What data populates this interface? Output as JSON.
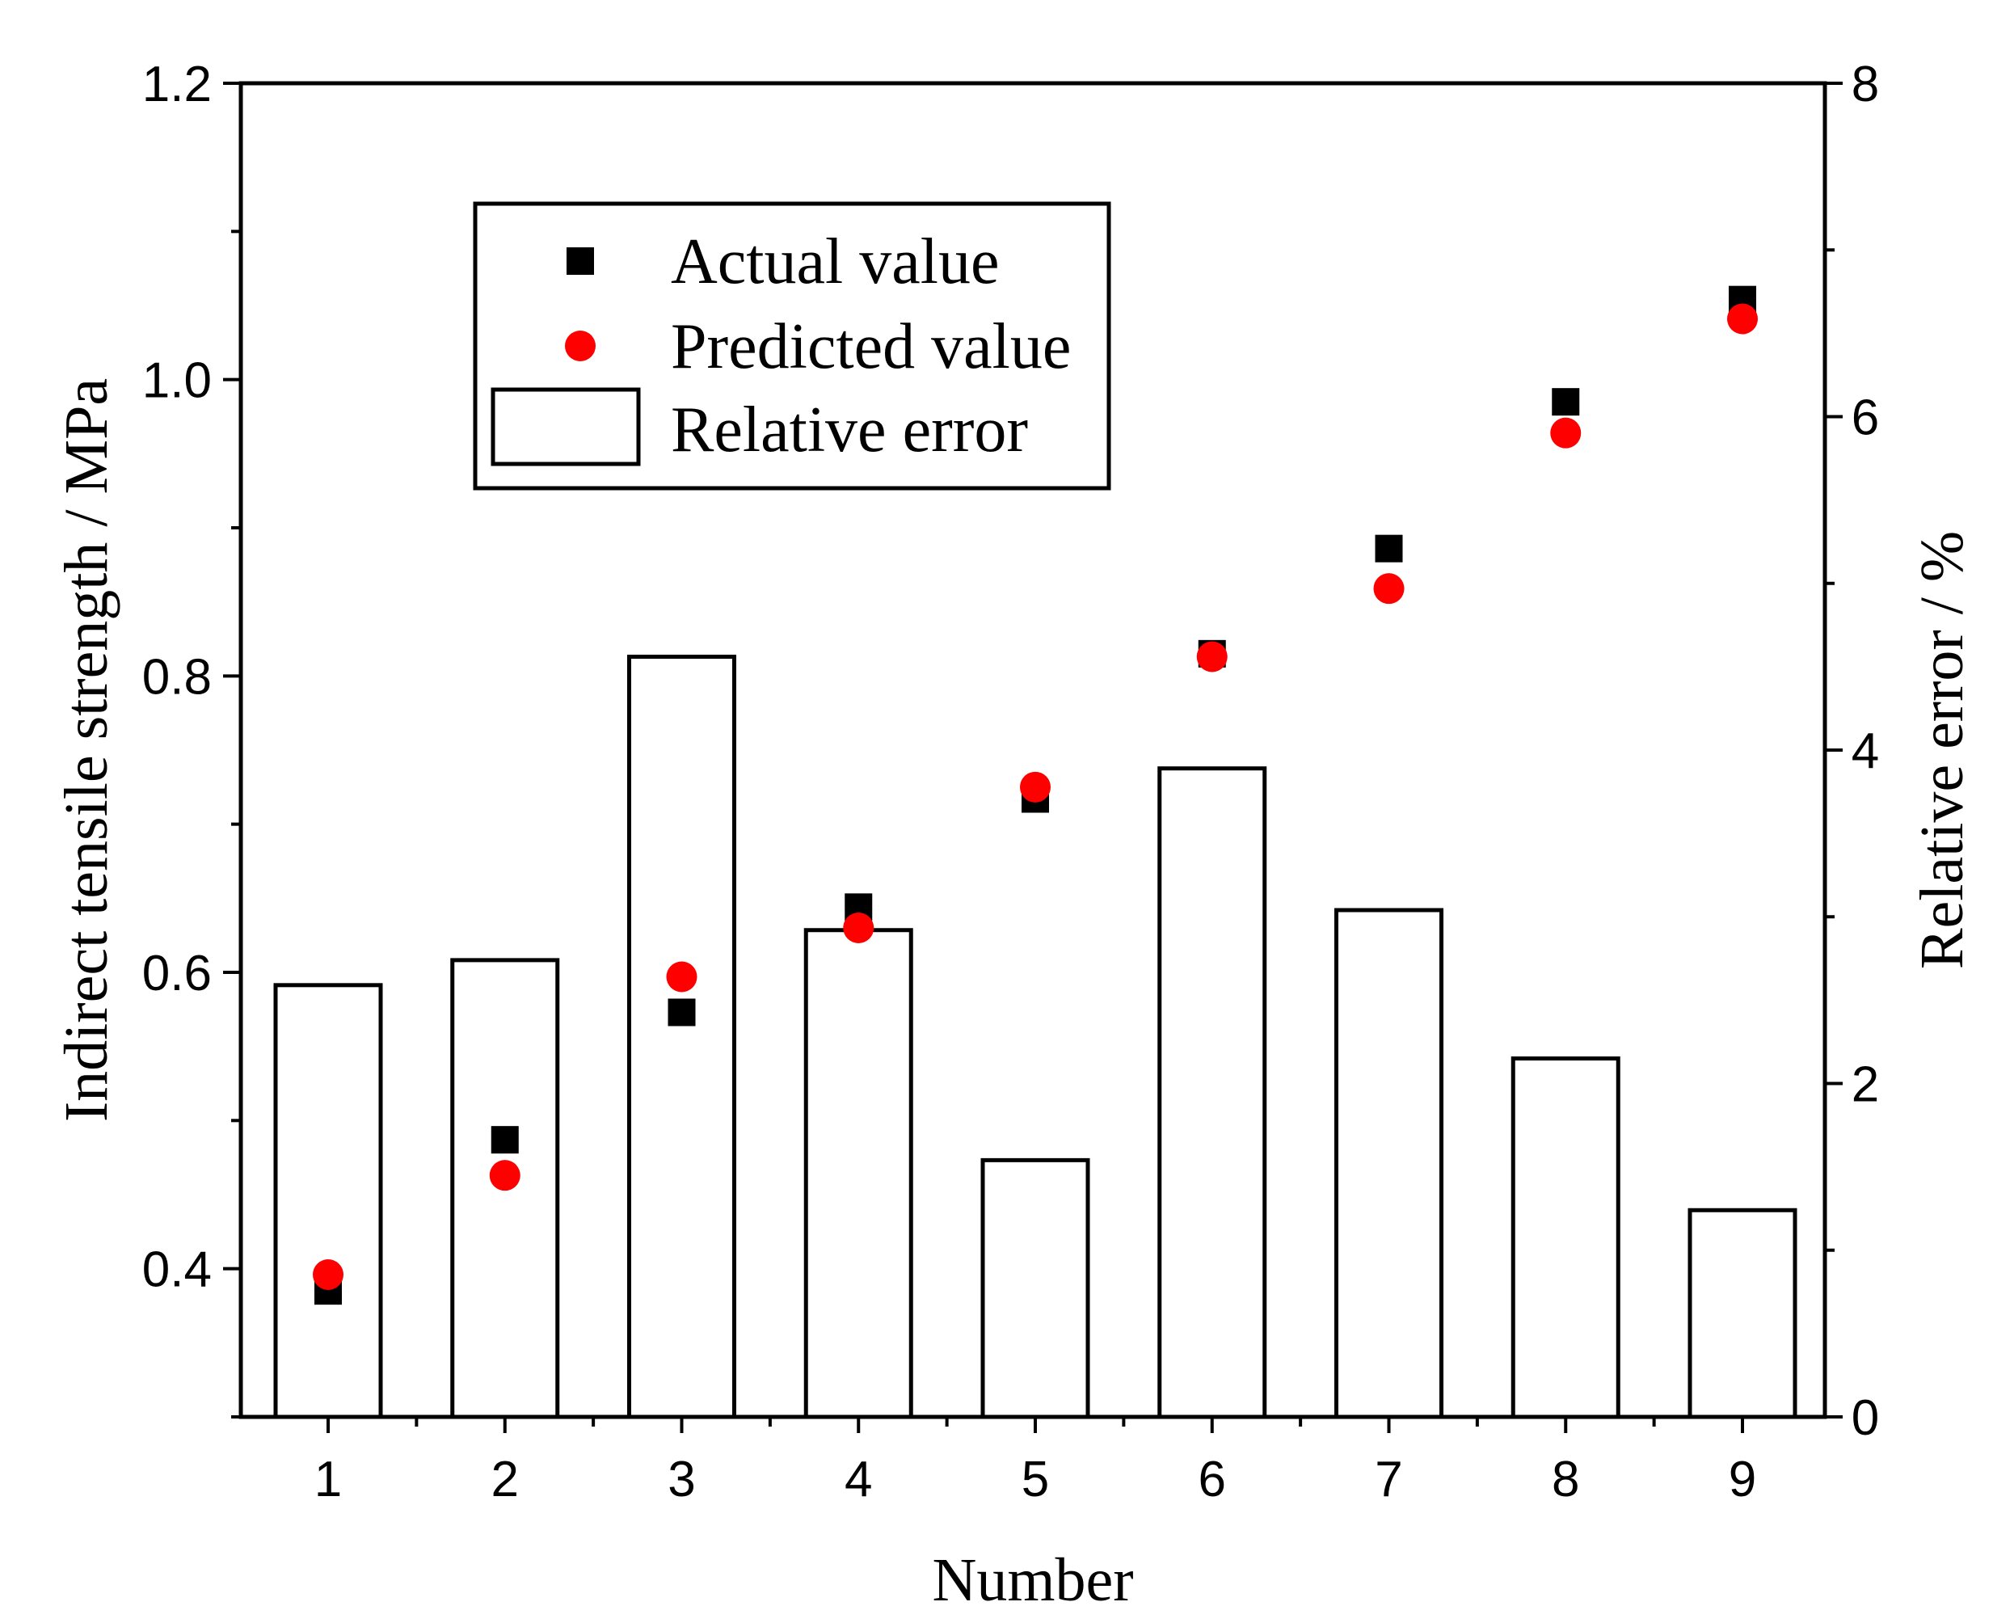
{
  "chart_data": {
    "type": "bar+scatter",
    "categories": [
      "1",
      "2",
      "3",
      "4",
      "5",
      "6",
      "7",
      "8",
      "9"
    ],
    "xlabel": "Number",
    "y_left": {
      "label": "Indirect tensile strength / MPa",
      "lim": [
        0.3,
        1.2
      ],
      "ticks": [
        "0.4",
        "0.6",
        "0.8",
        "1.0",
        "1.2"
      ]
    },
    "y_right": {
      "label": "Relative error / %",
      "lim": [
        0,
        8
      ],
      "ticks": [
        "0",
        "2",
        "4",
        "6",
        "8"
      ]
    },
    "series": [
      {
        "name": "Actual value",
        "type": "scatter",
        "marker": "square",
        "color": "#000000",
        "axis": "left",
        "values": [
          0.385,
          0.487,
          0.573,
          0.644,
          0.717,
          0.815,
          0.886,
          0.985,
          1.054
        ]
      },
      {
        "name": "Predicted value",
        "type": "scatter",
        "marker": "circle",
        "color": "#ff0000",
        "axis": "left",
        "values": [
          0.396,
          0.463,
          0.597,
          0.63,
          0.725,
          0.813,
          0.859,
          0.964,
          1.041
        ]
      },
      {
        "name": "Relative error",
        "type": "bar",
        "color": "#ffffff",
        "axis": "right",
        "values": [
          2.59,
          2.74,
          4.56,
          2.92,
          1.54,
          3.89,
          3.04,
          2.15,
          1.24
        ]
      }
    ],
    "legend_position": "top-left",
    "grid": false
  }
}
